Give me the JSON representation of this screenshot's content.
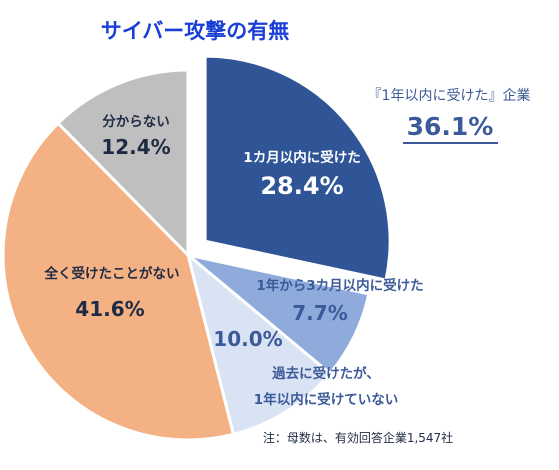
{
  "chart_data": {
    "type": "pie",
    "title": "サイバー攻撃の有無",
    "slices": [
      {
        "label": "1カ月以内に受けた",
        "value": 28.4,
        "value_label": "28.4%",
        "color": "#2f5597",
        "exploded": true
      },
      {
        "label": "1年から3カ月以内に受けた",
        "value": 7.7,
        "value_label": "7.7%",
        "color": "#8fabdc",
        "exploded": false
      },
      {
        "label": "過去に受けたが、\n1年以内に受けていない",
        "value": 10.0,
        "value_label": "10.0%",
        "color": "#dae3f3",
        "exploded": false
      },
      {
        "label": "全く受けたことがない",
        "value": 41.6,
        "value_label": "41.6%",
        "color": "#f4b183",
        "exploded": false
      },
      {
        "label": "分からない",
        "value": 12.4,
        "value_label": "12.4%",
        "color": "#bfbfbf",
        "exploded": false
      }
    ],
    "callout": {
      "label": "『1年以内に受けた』企業",
      "value": "36.1%"
    },
    "note": "注：母数は、有効回答企業1,547社"
  },
  "colors": {
    "title": "#1a3fd6",
    "dark_text": "#1f2a44",
    "blue_text": "#3c5a99",
    "white_text": "#ffffff"
  }
}
